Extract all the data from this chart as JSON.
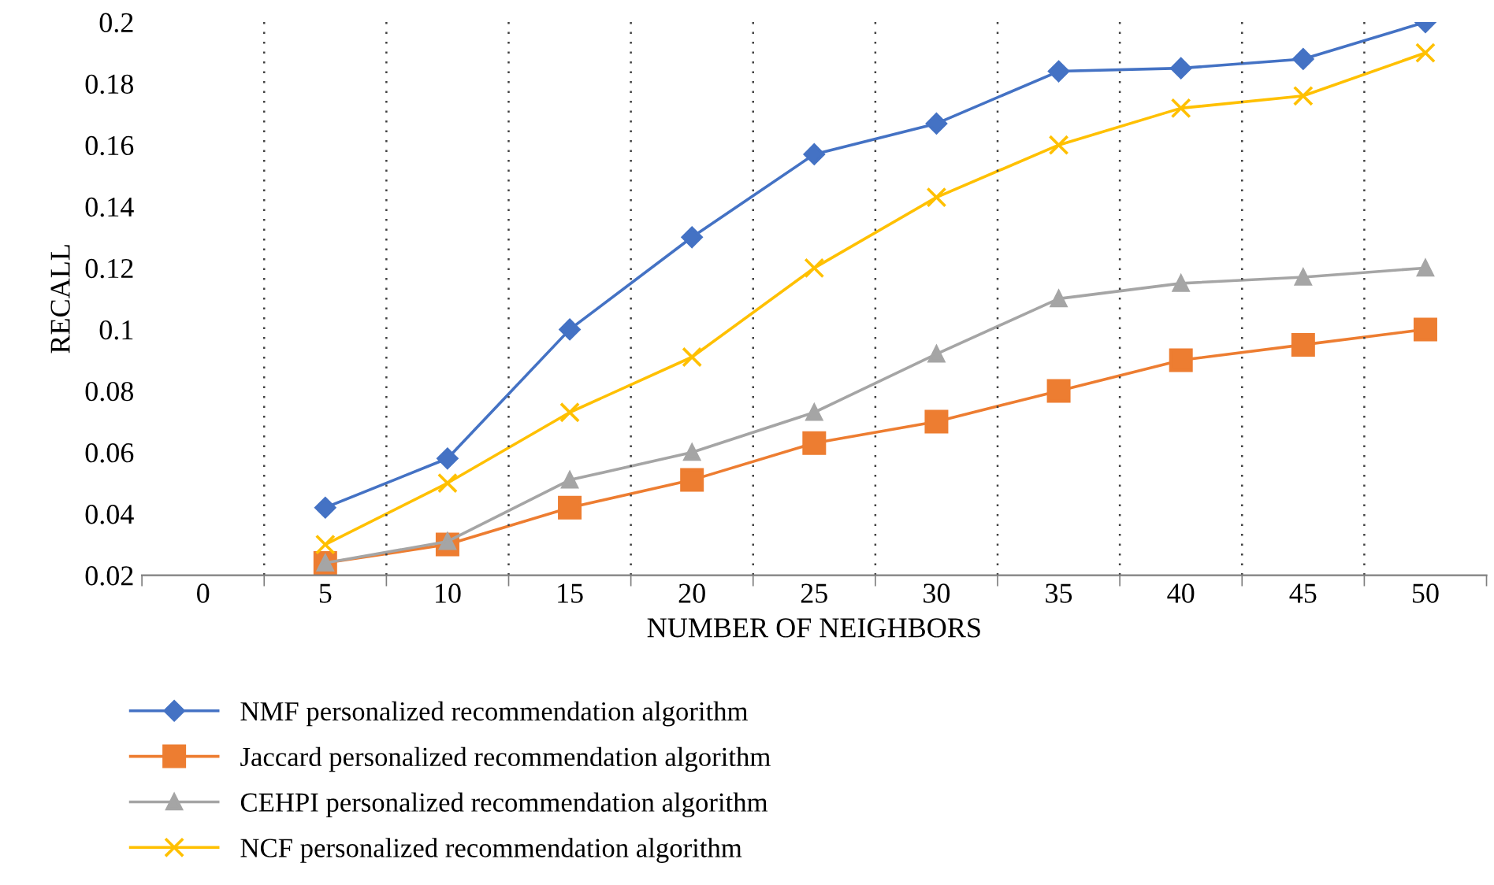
{
  "chart_data": {
    "type": "line",
    "categories": [
      "0",
      "5",
      "10",
      "15",
      "20",
      "25",
      "30",
      "35",
      "40",
      "45",
      "50"
    ],
    "xlabel": "NUMBER OF NEIGHBORS",
    "ylabel": "RECALL",
    "ylim": [
      0.02,
      0.2
    ],
    "yticks": [
      0.02,
      0.04,
      0.06,
      0.08,
      0.1,
      0.12,
      0.14,
      0.16,
      0.18,
      0.2
    ],
    "grid": "x",
    "legend": "bottom",
    "line_style": "solid",
    "series": [
      {
        "name": "NMF personalized recommendation algorithm",
        "color": "#4472c4",
        "marker": "diamond",
        "values": [
          null,
          0.042,
          0.058,
          0.1,
          0.13,
          0.157,
          0.167,
          0.184,
          0.185,
          0.188,
          0.2
        ]
      },
      {
        "name": "Jaccard personalized recommendation algorithm",
        "color": "#ed7d31",
        "marker": "square",
        "values": [
          null,
          0.024,
          0.03,
          0.042,
          0.051,
          0.063,
          0.07,
          0.08,
          0.09,
          0.095,
          0.1
        ]
      },
      {
        "name": "CEHPI personalized recommendation algorithm",
        "color": "#a5a5a5",
        "marker": "triangle",
        "values": [
          null,
          0.024,
          0.031,
          0.051,
          0.06,
          0.073,
          0.092,
          0.11,
          0.115,
          0.117,
          0.12
        ]
      },
      {
        "name": "NCF personalized recommendation algorithm",
        "color": "#ffc000",
        "marker": "cross",
        "values": [
          null,
          0.03,
          0.05,
          0.073,
          0.091,
          0.12,
          0.143,
          0.16,
          0.172,
          0.176,
          0.19
        ]
      }
    ]
  }
}
